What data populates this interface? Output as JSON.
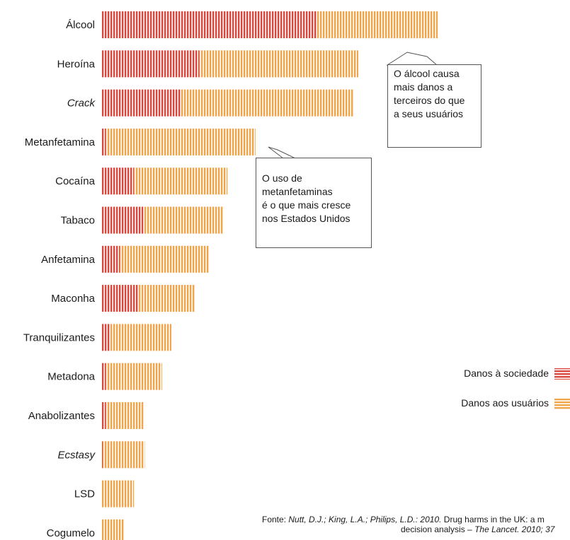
{
  "chart_data": {
    "type": "bar",
    "orientation": "horizontal",
    "stacked": true,
    "categories": [
      "Álcool",
      "Heroína",
      "Crack",
      "Metanfetamina",
      "Cocaína",
      "Tabaco",
      "Anfetamina",
      "Maconha",
      "Tranquilizantes",
      "Metadona",
      "Anabolizantes",
      "Ecstasy",
      "LSD",
      "Cogumelo"
    ],
    "italic_categories": [
      "Crack",
      "Ecstasy"
    ],
    "series": [
      {
        "name": "Danos à sociedade",
        "color": "#d9473d",
        "values": [
          46,
          21,
          17,
          1,
          7,
          9,
          4,
          8,
          2,
          1,
          1,
          0.3,
          0,
          0
        ]
      },
      {
        "name": "Danos aos usuários",
        "color": "#f0a54a",
        "values": [
          26,
          34,
          37,
          32,
          20,
          17,
          19,
          12,
          13,
          12,
          8,
          9,
          7,
          5
        ]
      }
    ],
    "xlim": [
      0,
      100
    ],
    "grid": false,
    "legend_position": "right"
  },
  "callouts": [
    {
      "lines": [
        "O álcool causa",
        "mais danos a",
        "terceiros do que",
        "a seus usuários"
      ]
    },
    {
      "lines": [
        "O uso de",
        "metanfetaminas",
        "é o que mais cresce",
        "nos Estados Unidos"
      ]
    }
  ],
  "legend": {
    "society_label": "Danos à sociedade",
    "users_label": "Danos aos usuários"
  },
  "source": {
    "prefix": "Fonte: ",
    "authors": "Nutt, D.J.; King, L.A.; Philips, L.D.: 2010.",
    "title_part": " Drug harms in the UK: a m",
    "line2_prefix": "decision analysis – ",
    "line2_journal": "The Lancet. 2010; 37"
  }
}
